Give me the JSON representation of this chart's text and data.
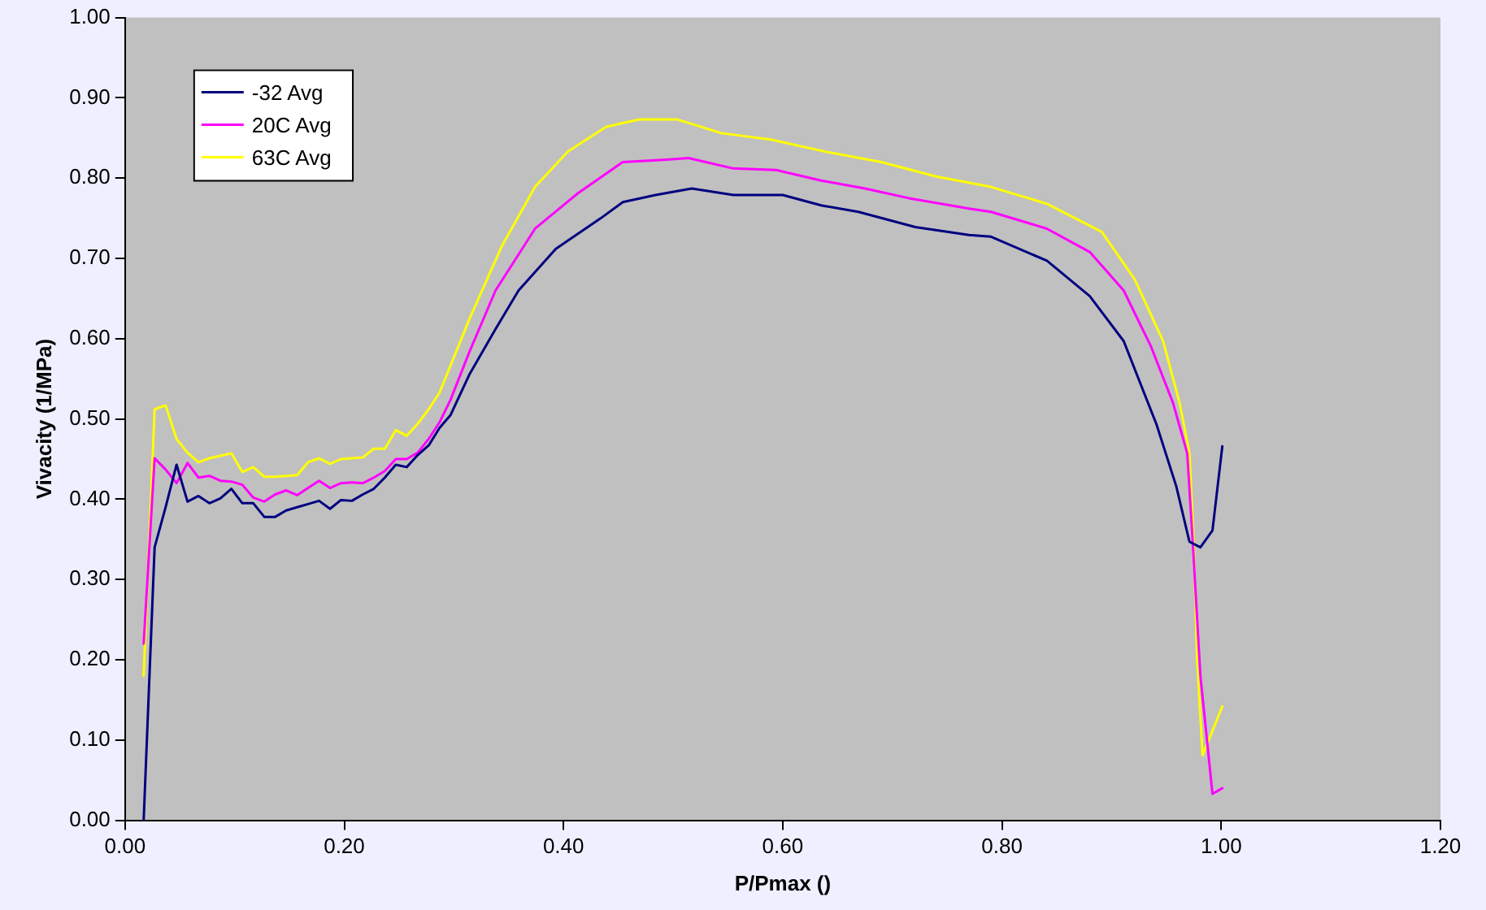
{
  "chart_data": {
    "type": "line",
    "xlabel": "P/Pmax ()",
    "ylabel": "Vivacity (1/MPa)",
    "xlim": [
      0,
      1.2
    ],
    "xticks": [
      {
        "value": 0,
        "label": "0.00"
      },
      {
        "value": 0.2,
        "label": "0.20"
      },
      {
        "value": 0.4,
        "label": "0.40"
      },
      {
        "value": 0.6,
        "label": "0.60"
      },
      {
        "value": 0.8,
        "label": "0.80"
      },
      {
        "value": 1,
        "label": "1.00"
      },
      {
        "value": 1.2,
        "label": "1.20"
      }
    ],
    "ylim": [
      0,
      1
    ],
    "yticks": [
      {
        "value": 0,
        "label": "0.00"
      },
      {
        "value": 0.1,
        "label": "0.10"
      },
      {
        "value": 0.2,
        "label": "0.20"
      },
      {
        "value": 0.3,
        "label": "0.30"
      },
      {
        "value": 0.4,
        "label": "0.40"
      },
      {
        "value": 0.5,
        "label": "0.50"
      },
      {
        "value": 0.6,
        "label": "0.60"
      },
      {
        "value": 0.7,
        "label": "0.70"
      },
      {
        "value": 0.8,
        "label": "0.80"
      },
      {
        "value": 0.9,
        "label": "0.90"
      },
      {
        "value": 1,
        "label": "1.00"
      }
    ],
    "grid": false,
    "legend": "top left",
    "marker": "none",
    "line_style": "solid",
    "series": [
      {
        "name": "-32 Avg",
        "color": "#000080",
        "x": [
          0.017,
          0.027,
          0.037,
          0.047,
          0.057,
          0.067,
          0.077,
          0.087,
          0.097,
          0.107,
          0.117,
          0.127,
          0.137,
          0.147,
          0.157,
          0.167,
          0.177,
          0.187,
          0.197,
          0.207,
          0.217,
          0.227,
          0.237,
          0.247,
          0.257,
          0.267,
          0.277,
          0.287,
          0.297,
          0.314,
          0.338,
          0.359,
          0.393,
          0.434,
          0.454,
          0.484,
          0.517,
          0.555,
          0.6,
          0.635,
          0.669,
          0.721,
          0.77,
          0.79,
          0.841,
          0.88,
          0.911,
          0.941,
          0.959,
          0.971,
          0.981,
          0.992,
          1.001
        ],
        "values": [
          0.0,
          0.34,
          0.39,
          0.443,
          0.397,
          0.404,
          0.395,
          0.401,
          0.413,
          0.395,
          0.395,
          0.378,
          0.378,
          0.386,
          0.39,
          0.394,
          0.398,
          0.388,
          0.399,
          0.398,
          0.406,
          0.413,
          0.427,
          0.443,
          0.44,
          0.455,
          0.467,
          0.489,
          0.505,
          0.555,
          0.612,
          0.66,
          0.712,
          0.75,
          0.77,
          0.779,
          0.787,
          0.779,
          0.779,
          0.766,
          0.758,
          0.739,
          0.729,
          0.727,
          0.697,
          0.653,
          0.597,
          0.493,
          0.416,
          0.347,
          0.34,
          0.361,
          0.466
        ]
      },
      {
        "name": "20C Avg",
        "color": "#ff00ff",
        "x": [
          0.017,
          0.027,
          0.037,
          0.047,
          0.057,
          0.067,
          0.077,
          0.087,
          0.097,
          0.107,
          0.117,
          0.127,
          0.137,
          0.147,
          0.157,
          0.167,
          0.177,
          0.187,
          0.197,
          0.207,
          0.217,
          0.227,
          0.237,
          0.247,
          0.257,
          0.267,
          0.277,
          0.287,
          0.297,
          0.314,
          0.338,
          0.374,
          0.413,
          0.454,
          0.494,
          0.514,
          0.555,
          0.594,
          0.635,
          0.675,
          0.715,
          0.77,
          0.79,
          0.841,
          0.88,
          0.911,
          0.936,
          0.956,
          0.969,
          0.974,
          0.981,
          0.992,
          1.001
        ],
        "values": [
          0.22,
          0.451,
          0.437,
          0.42,
          0.445,
          0.427,
          0.429,
          0.423,
          0.422,
          0.418,
          0.402,
          0.397,
          0.406,
          0.411,
          0.405,
          0.414,
          0.423,
          0.414,
          0.42,
          0.421,
          0.42,
          0.427,
          0.435,
          0.45,
          0.45,
          0.458,
          0.475,
          0.496,
          0.524,
          0.583,
          0.66,
          0.737,
          0.781,
          0.82,
          0.823,
          0.825,
          0.812,
          0.81,
          0.797,
          0.787,
          0.775,
          0.762,
          0.758,
          0.737,
          0.708,
          0.66,
          0.59,
          0.52,
          0.457,
          0.347,
          0.18,
          0.033,
          0.04
        ]
      },
      {
        "name": "63C Avg",
        "color": "#ffff00",
        "x": [
          0.017,
          0.027,
          0.037,
          0.047,
          0.057,
          0.067,
          0.077,
          0.087,
          0.097,
          0.107,
          0.117,
          0.127,
          0.137,
          0.147,
          0.157,
          0.167,
          0.177,
          0.187,
          0.197,
          0.207,
          0.217,
          0.227,
          0.237,
          0.247,
          0.257,
          0.267,
          0.277,
          0.287,
          0.314,
          0.344,
          0.374,
          0.404,
          0.439,
          0.469,
          0.504,
          0.544,
          0.589,
          0.639,
          0.69,
          0.74,
          0.79,
          0.841,
          0.891,
          0.921,
          0.947,
          0.962,
          0.971,
          0.975,
          0.978,
          0.983,
          1.001
        ],
        "values": [
          0.18,
          0.512,
          0.517,
          0.475,
          0.458,
          0.446,
          0.451,
          0.454,
          0.457,
          0.434,
          0.44,
          0.428,
          0.428,
          0.429,
          0.43,
          0.446,
          0.451,
          0.444,
          0.45,
          0.451,
          0.452,
          0.463,
          0.463,
          0.486,
          0.479,
          0.494,
          0.512,
          0.533,
          0.624,
          0.716,
          0.789,
          0.833,
          0.864,
          0.873,
          0.873,
          0.856,
          0.848,
          0.833,
          0.82,
          0.802,
          0.789,
          0.768,
          0.733,
          0.674,
          0.597,
          0.52,
          0.457,
          0.34,
          0.2,
          0.081,
          0.142
        ]
      }
    ]
  }
}
